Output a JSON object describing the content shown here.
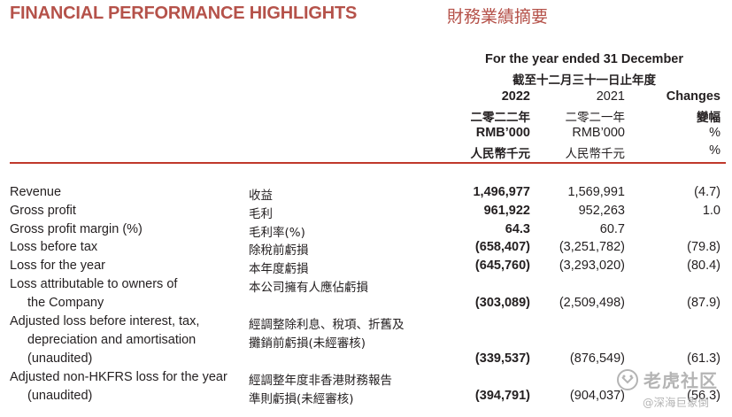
{
  "title_en": "FINANCIAL PERFORMANCE HIGHLIGHTS",
  "title_zh": "財務業績摘要",
  "period_en": "For the year ended 31 December",
  "period_zh": "截至十二月三十一日止年度",
  "columns": {
    "c2022": {
      "year": "2022",
      "year_zh": "二零二二年",
      "unit": "RMB’000",
      "unit_zh": "人民幣千元"
    },
    "c2021": {
      "year": "2021",
      "year_zh": "二零二一年",
      "unit": "RMB’000",
      "unit_zh": "人民幣千元"
    },
    "change": {
      "year": "Changes",
      "year_zh": "變幅",
      "unit": "%",
      "unit_zh": "%"
    }
  },
  "rows": [
    {
      "en": [
        "Revenue"
      ],
      "zh": [
        "收益"
      ],
      "v2022": "1,496,977",
      "v2021": "1,569,991",
      "change": "(4.7)"
    },
    {
      "en": [
        "Gross profit"
      ],
      "zh": [
        "毛利"
      ],
      "v2022": "961,922",
      "v2021": "952,263",
      "change": "1.0"
    },
    {
      "en": [
        "Gross profit margin (%)"
      ],
      "zh": [
        "毛利率(%)"
      ],
      "v2022": "64.3",
      "v2021": "60.7",
      "change": ""
    },
    {
      "en": [
        "Loss before tax"
      ],
      "zh": [
        "除稅前虧損"
      ],
      "v2022": "(658,407)",
      "v2021": "(3,251,782)",
      "change": "(79.8)"
    },
    {
      "en": [
        "Loss for the year"
      ],
      "zh": [
        "本年度虧損"
      ],
      "v2022": "(645,760)",
      "v2021": "(3,293,020)",
      "change": "(80.4)"
    },
    {
      "en": [
        "Loss attributable to owners of",
        "the Company"
      ],
      "zh": [
        "本公司擁有人應佔虧損"
      ],
      "v2022": "(303,089)",
      "v2021": "(2,509,498)",
      "change": "(87.9)"
    },
    {
      "en": [
        "Adjusted loss before interest, tax,",
        "depreciation and amortisation",
        "(unaudited)"
      ],
      "zh": [
        "經調整除利息、稅項、折舊及",
        "攤銷前虧損(未經審核)"
      ],
      "v2022": "(339,537)",
      "v2021": "(876,549)",
      "change": "(61.3)"
    },
    {
      "en": [
        "Adjusted non-HKFRS loss for the year",
        "(unaudited)"
      ],
      "zh": [
        "經調整年度非香港財務報告",
        "準則虧損(未經審核)"
      ],
      "v2022": "(394,791)",
      "v2021": "(904,037)",
      "change": "(56.3)"
    }
  ],
  "watermark": {
    "brand": "老虎社区",
    "handle": "@深海巨象倒"
  },
  "colors": {
    "accent": "#b5524a",
    "rule": "#c0392b",
    "text": "#231f20"
  }
}
